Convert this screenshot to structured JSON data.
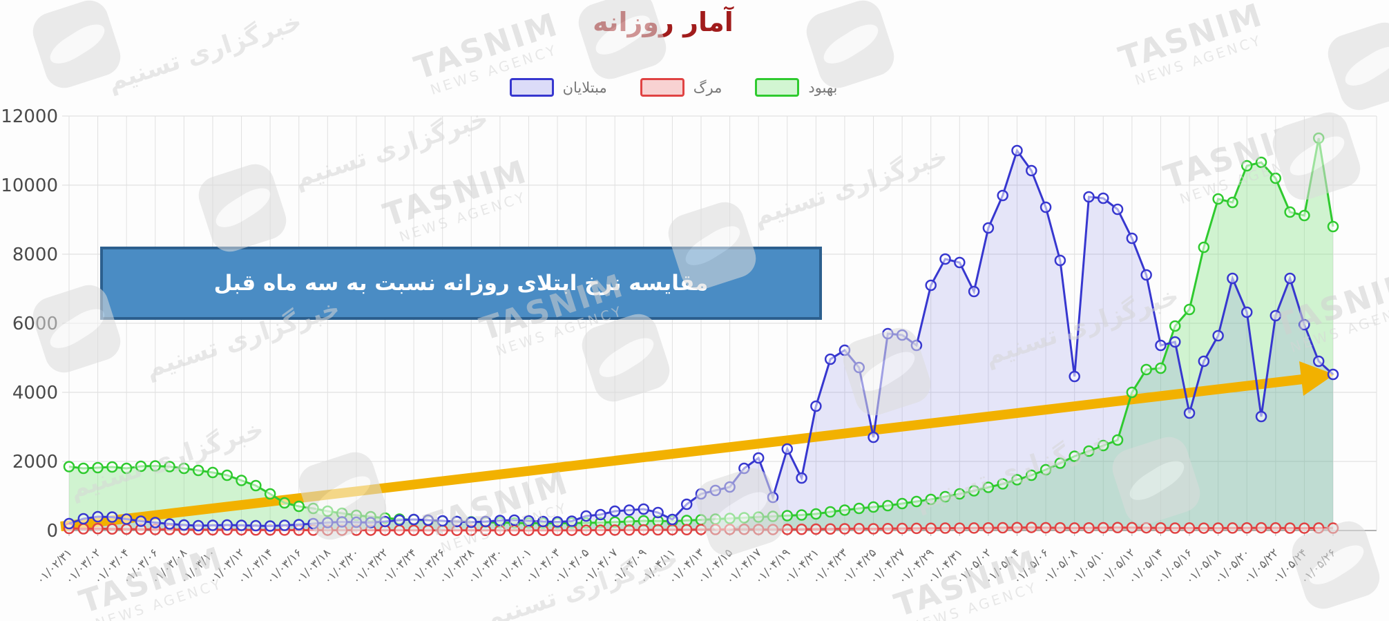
{
  "title": "آمار روزانه",
  "legend": {
    "items": [
      {
        "label": "مبتلایان",
        "color": "#3737cf",
        "fill": "#dcdcf8"
      },
      {
        "label": "مرگ",
        "color": "#e04343",
        "fill": "#f8d2d2"
      },
      {
        "label": "بهبود",
        "color": "#2fca2f",
        "fill": "#d2f6d2"
      }
    ]
  },
  "annotation": {
    "text": "مقایسه نرخ ابتلای روزانه نسبت به سه ماه قبل",
    "fill": "#4a8cc4",
    "border": "#2c5f8e"
  },
  "watermark": {
    "brand": "TASNIM",
    "brand_sub": "NEWS AGENCY",
    "brand_fa": "خبرگزاری تسنیم"
  },
  "chart_data": {
    "type": "area",
    "title": "آمار روزانه",
    "ylim": [
      0,
      12000
    ],
    "y_ticks": [
      0,
      2000,
      4000,
      6000,
      8000,
      10000,
      12000
    ],
    "grid": true,
    "legend_position": "top-center",
    "x_label_step": 2,
    "x_labels": [
      "۰۱/۰۲/۳۱",
      "۰۱/۰۳/۰۲",
      "۰۱/۰۳/۰۴",
      "۰۱/۰۳/۰۶",
      "۰۱/۰۳/۰۸",
      "۰۱/۰۳/۱۰",
      "۰۱/۰۳/۱۲",
      "۰۱/۰۳/۱۴",
      "۰۱/۰۳/۱۶",
      "۰۱/۰۳/۱۸",
      "۰۱/۰۳/۲۰",
      "۰۱/۰۳/۲۲",
      "۰۱/۰۳/۲۴",
      "۰۱/۰۳/۲۶",
      "۰۱/۰۳/۲۸",
      "۰۱/۰۳/۳۰",
      "۰۱/۰۴/۰۱",
      "۰۱/۰۴/۰۳",
      "۰۱/۰۴/۰۵",
      "۰۱/۰۴/۰۷",
      "۰۱/۰۴/۰۹",
      "۰۱/۰۴/۱۱",
      "۰۱/۰۴/۱۳",
      "۰۱/۰۴/۱۵",
      "۰۱/۰۴/۱۷",
      "۰۱/۰۴/۱۹",
      "۰۱/۰۴/۲۱",
      "۰۱/۰۴/۲۳",
      "۰۱/۰۴/۲۵",
      "۰۱/۰۴/۲۷",
      "۰۱/۰۴/۲۹",
      "۰۱/۰۴/۳۱",
      "۰۱/۰۵/۰۲",
      "۰۱/۰۵/۰۴",
      "۰۱/۰۵/۰۶",
      "۰۱/۰۵/۰۸",
      "۰۱/۰۵/۱۰",
      "۰۱/۰۵/۱۲",
      "۰۱/۰۵/۱۴",
      "۰۱/۰۵/۱۶",
      "۰۱/۰۵/۱۸",
      "۰۱/۰۵/۲۰",
      "۰۱/۰۵/۲۲",
      "۰۱/۰۵/۲۴",
      "۰۱/۰۵/۲۶"
    ],
    "series": [
      {
        "name": "بهبود",
        "name_en": "recovered",
        "color": "#2fca2f",
        "area_fill": "rgba(118,224,118,0.33)",
        "values": [
          1850,
          1800,
          1820,
          1840,
          1800,
          1860,
          1870,
          1850,
          1800,
          1740,
          1680,
          1600,
          1450,
          1300,
          1060,
          800,
          700,
          640,
          560,
          500,
          440,
          400,
          360,
          330,
          310,
          290,
          270,
          260,
          250,
          240,
          230,
          220,
          215,
          210,
          210,
          215,
          220,
          230,
          245,
          260,
          280,
          275,
          270,
          290,
          310,
          330,
          350,
          370,
          390,
          410,
          430,
          450,
          480,
          540,
          590,
          640,
          680,
          720,
          780,
          840,
          900,
          980,
          1060,
          1150,
          1250,
          1350,
          1470,
          1600,
          1760,
          1950,
          2150,
          2300,
          2460,
          2620,
          4000,
          4660,
          4700,
          5920,
          6400,
          8200,
          9600,
          9500,
          10560,
          10660,
          10200,
          9220,
          9120,
          11360,
          8800
        ]
      },
      {
        "name": "مبتلایان",
        "name_en": "infected",
        "color": "#3737cf",
        "area_fill": "rgba(95,95,220,0.15)",
        "values": [
          200,
          340,
          400,
          390,
          330,
          270,
          230,
          190,
          160,
          140,
          150,
          160,
          150,
          140,
          130,
          150,
          170,
          200,
          230,
          250,
          240,
          230,
          260,
          300,
          320,
          300,
          280,
          260,
          240,
          260,
          290,
          300,
          280,
          260,
          250,
          270,
          420,
          460,
          560,
          590,
          620,
          520,
          320,
          760,
          1060,
          1160,
          1260,
          1800,
          2100,
          960,
          2360,
          1520,
          3600,
          4960,
          5220,
          4720,
          2700,
          5700,
          5660,
          5360,
          7100,
          7860,
          7760,
          6920,
          8760,
          9700,
          11000,
          10420,
          9360,
          7820,
          4460,
          9660,
          9620,
          9300,
          8460,
          7400,
          5360,
          5460,
          3400,
          4900,
          5640,
          7300,
          6320,
          3300,
          6220,
          7300,
          5960,
          4900,
          4520
        ]
      },
      {
        "name": "مرگ",
        "name_en": "deaths",
        "color": "#e04343",
        "area_fill": "rgba(240,130,130,0.30)",
        "values": [
          60,
          50,
          55,
          45,
          40,
          35,
          30,
          30,
          25,
          25,
          20,
          20,
          18,
          15,
          15,
          12,
          10,
          10,
          8,
          8,
          10,
          8,
          6,
          8,
          5,
          6,
          5,
          4,
          6,
          5,
          4,
          5,
          3,
          4,
          5,
          6,
          8,
          10,
          12,
          15,
          18,
          20,
          22,
          25,
          28,
          30,
          32,
          35,
          30,
          28,
          32,
          35,
          40,
          45,
          50,
          55,
          50,
          55,
          60,
          62,
          65,
          70,
          68,
          72,
          75,
          80,
          85,
          88,
          80,
          78,
          72,
          75,
          80,
          85,
          82,
          78,
          75,
          70,
          72,
          68,
          70,
          72,
          75,
          78,
          74,
          70,
          68,
          72,
          70
        ]
      }
    ],
    "trend_arrow": {
      "color": "#f2b100",
      "start_value": 100,
      "end_value": 4500,
      "spans": "from first day to last day, rising straight line"
    }
  }
}
